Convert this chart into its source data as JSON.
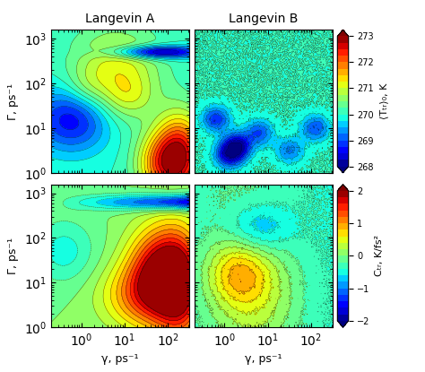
{
  "title_left": "Langevin A",
  "title_right": "Langevin B",
  "xlabel": "γ, ps⁻¹",
  "ylabel": "Γ, ps⁻¹",
  "colorbar1_label": "⟨Τₜᵣ⟩₀, K",
  "colorbar2_label": "Cₜᵣ, K/fs²",
  "vmin1": 268,
  "vmax1": 273,
  "vmin2": -2,
  "vmax2": 2,
  "gamma_range": [
    -0.7,
    2.5
  ],
  "Gamma_range": [
    0.0,
    3.2
  ],
  "background_color": "#ffffff"
}
